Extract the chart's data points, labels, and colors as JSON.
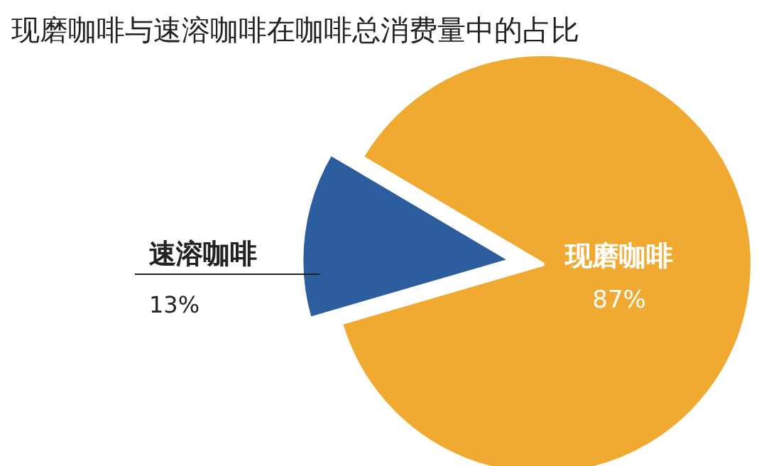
{
  "chart_data": {
    "type": "pie",
    "title": "现磨咖啡与速溶咖啡在咖啡总消费量中的占比",
    "categories": [
      "速溶咖啡",
      "现磨咖啡"
    ],
    "values": [
      13,
      87
    ],
    "colors": [
      "#2c5d9e",
      "#f0aa32"
    ],
    "value_labels": [
      "13%",
      "87%"
    ]
  }
}
